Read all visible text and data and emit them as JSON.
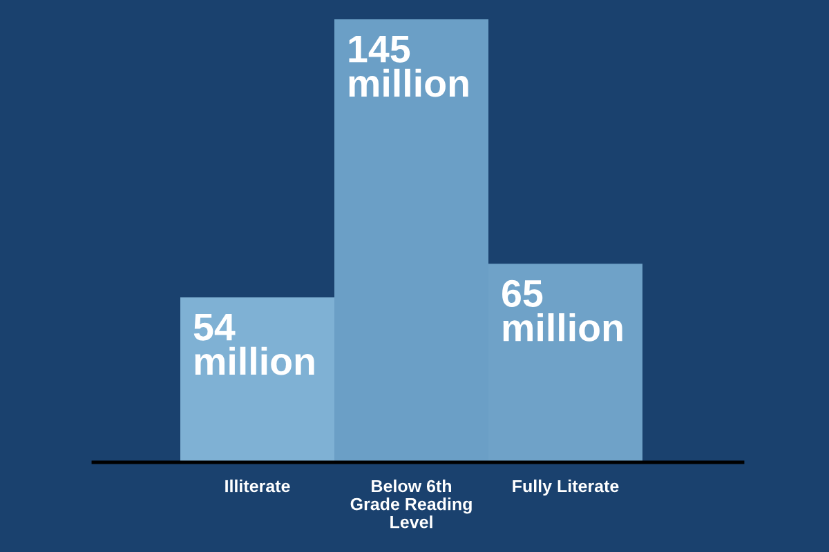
{
  "chart_data": {
    "type": "bar",
    "categories": [
      "Illiterate",
      "Below 6th Grade Reading Level",
      "Fully Literate"
    ],
    "values": [
      54,
      145,
      65
    ],
    "colors": [
      "#7fb1d4",
      "#6b9fc6",
      "#6fa2c8"
    ],
    "value_labels": [
      "54 million",
      "145 million",
      "65 million"
    ],
    "tick_labels": "x"
  }
}
